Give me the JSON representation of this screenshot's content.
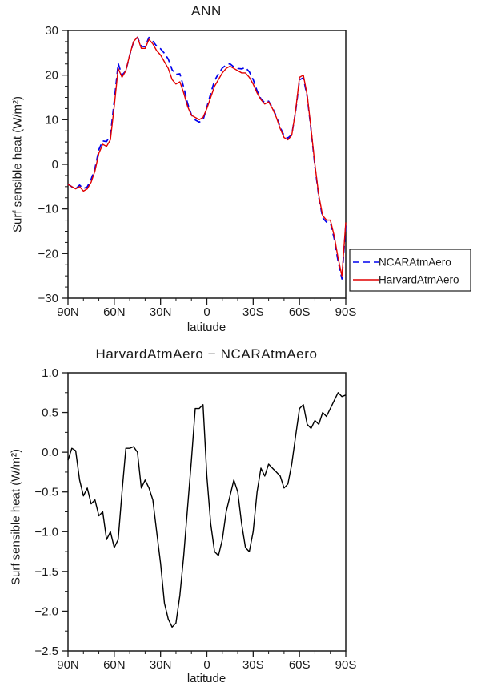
{
  "page": {
    "bg": "#ffffff",
    "ink": "#1a1a1a"
  },
  "chart_data": [
    {
      "type": "line",
      "title": "ANN",
      "xlabel": "latitude",
      "ylabel": "Surf sensible heat (W/m²)",
      "xlim": [
        90,
        -90
      ],
      "ylim": [
        -30,
        30
      ],
      "xticks": [
        90,
        60,
        30,
        0,
        -30,
        -60,
        -90
      ],
      "xtick_labels": [
        "90N",
        "60N",
        "30N",
        "0",
        "30S",
        "60S",
        "90S"
      ],
      "x_minor_step": 10,
      "yticks": [
        -30,
        -20,
        -10,
        0,
        10,
        20,
        30
      ],
      "ytick_labels": [
        "−30",
        "−20",
        "−10",
        "0",
        "10",
        "20",
        "30"
      ],
      "y_minor_step": 2.5,
      "grid": false,
      "legend_position": "outside-right",
      "x": [
        90,
        87.5,
        85,
        82.5,
        80,
        77.5,
        75,
        72.5,
        70,
        67.5,
        65,
        62.5,
        60,
        57.5,
        55,
        52.5,
        50,
        47.5,
        45,
        42.5,
        40,
        37.5,
        35,
        32.5,
        30,
        27.5,
        25,
        22.5,
        20,
        17.5,
        15,
        12.5,
        10,
        7.5,
        5,
        2.5,
        0,
        -2.5,
        -5,
        -7.5,
        -10,
        -12.5,
        -15,
        -17.5,
        -20,
        -22.5,
        -25,
        -27.5,
        -30,
        -32.5,
        -35,
        -37.5,
        -40,
        -42.5,
        -45,
        -47.5,
        -50,
        -52.5,
        -55,
        -57.5,
        -60,
        -62.5,
        -65,
        -67.5,
        -70,
        -72.5,
        -75,
        -77.5,
        -80,
        -82.5,
        -85,
        -87.5,
        -90
      ],
      "series": [
        {
          "name": "NCARAtmAero",
          "color": "#0000ee",
          "dash": true,
          "values": [
            -4.4,
            -5.05,
            -5.52,
            -4.65,
            -5.45,
            -5.05,
            -3.35,
            -0.9,
            3.3,
            5.25,
            5.1,
            6.5,
            14.2,
            22.6,
            20.0,
            20.95,
            24.45,
            27.43,
            28.5,
            26.45,
            26.35,
            28.45,
            27.6,
            26.5,
            25.9,
            24.9,
            23.6,
            21.2,
            20.15,
            20.3,
            17.3,
            13.7,
            11.1,
            9.95,
            9.45,
            9.9,
            12.8,
            15.9,
            18.75,
            20.3,
            21.6,
            22.25,
            22.55,
            21.85,
            21.5,
            21.4,
            21.7,
            20.75,
            19.0,
            16.5,
            14.7,
            13.8,
            14.15,
            12.7,
            10.75,
            8.3,
            6.45,
            5.9,
            6.65,
            11.8,
            18.95,
            19.4,
            15.15,
            7.7,
            -0.4,
            -7.35,
            -12.0,
            -12.95,
            -13.05,
            -16.65,
            -21.75,
            -25.7,
            -13.72
          ]
        },
        {
          "name": "HarvardAtmAero",
          "color": "#e10000",
          "dash": false,
          "values": [
            -4.5,
            -5,
            -5.5,
            -5,
            -6,
            -5.5,
            -4,
            -1.5,
            2.5,
            4.5,
            4,
            5.5,
            13,
            21.5,
            19.5,
            21,
            24.5,
            27.5,
            28.5,
            26,
            26,
            28,
            27,
            25.5,
            24.5,
            23,
            21.5,
            19,
            18,
            18.5,
            16,
            13,
            11,
            10.5,
            10,
            10.5,
            12.5,
            15,
            17.5,
            19,
            20.5,
            21.5,
            22,
            21.5,
            21,
            20.5,
            20.5,
            19.5,
            18,
            16,
            14.5,
            13.5,
            14,
            12.5,
            10.5,
            8,
            6,
            5.5,
            6.5,
            12,
            19.5,
            20,
            15.5,
            8,
            0,
            -7,
            -11.5,
            -12.5,
            -12.5,
            -16,
            -21,
            -25,
            -13
          ]
        }
      ]
    },
    {
      "type": "line",
      "title": "HarvardAtmAero − NCARAtmAero",
      "xlabel": "latitude",
      "ylabel": "Surf sensible heat (W/m²)",
      "xlim": [
        90,
        -90
      ],
      "ylim": [
        -2.5,
        1.0
      ],
      "xticks": [
        90,
        60,
        30,
        0,
        -30,
        -60,
        -90
      ],
      "xtick_labels": [
        "90N",
        "60N",
        "30N",
        "0",
        "30S",
        "60S",
        "90S"
      ],
      "x_minor_step": 10,
      "yticks": [
        -2.5,
        -2.0,
        -1.5,
        -1.0,
        -0.5,
        0.0,
        0.5,
        1.0
      ],
      "ytick_labels": [
        "−2.5",
        "−2.0",
        "−1.5",
        "−1.0",
        "−0.5",
        "0.0",
        "0.5",
        "1.0"
      ],
      "y_minor_step": 0.25,
      "grid": false,
      "legend_position": "none",
      "x": [
        90,
        87.5,
        85,
        82.5,
        80,
        77.5,
        75,
        72.5,
        70,
        67.5,
        65,
        62.5,
        60,
        57.5,
        55,
        52.5,
        50,
        47.5,
        45,
        42.5,
        40,
        37.5,
        35,
        32.5,
        30,
        27.5,
        25,
        22.5,
        20,
        17.5,
        15,
        12.5,
        10,
        7.5,
        5,
        2.5,
        0,
        -2.5,
        -5,
        -7.5,
        -10,
        -12.5,
        -15,
        -17.5,
        -20,
        -22.5,
        -25,
        -27.5,
        -30,
        -32.5,
        -35,
        -37.5,
        -40,
        -42.5,
        -45,
        -47.5,
        -50,
        -52.5,
        -55,
        -57.5,
        -60,
        -62.5,
        -65,
        -67.5,
        -70,
        -72.5,
        -75,
        -77.5,
        -80,
        -82.5,
        -85,
        -87.5,
        -90
      ],
      "series": [
        {
          "name": "HarvardAtmAero − NCARAtmAero",
          "color": "#000000",
          "dash": false,
          "values": [
            -0.1,
            0.05,
            0.02,
            -0.35,
            -0.55,
            -0.45,
            -0.65,
            -0.6,
            -0.8,
            -0.75,
            -1.1,
            -1.0,
            -1.2,
            -1.1,
            -0.5,
            0.05,
            0.05,
            0.07,
            0.0,
            -0.45,
            -0.35,
            -0.45,
            -0.6,
            -1.0,
            -1.4,
            -1.9,
            -2.1,
            -2.2,
            -2.15,
            -1.8,
            -1.3,
            -0.7,
            -0.1,
            0.55,
            0.55,
            0.6,
            -0.3,
            -0.9,
            -1.25,
            -1.3,
            -1.1,
            -0.75,
            -0.55,
            -0.35,
            -0.5,
            -0.9,
            -1.2,
            -1.25,
            -1.0,
            -0.5,
            -0.2,
            -0.3,
            -0.15,
            -0.2,
            -0.25,
            -0.3,
            -0.45,
            -0.4,
            -0.15,
            0.2,
            0.55,
            0.6,
            0.35,
            0.3,
            0.4,
            0.35,
            0.5,
            0.45,
            0.55,
            0.65,
            0.75,
            0.7,
            0.72
          ]
        }
      ]
    }
  ]
}
